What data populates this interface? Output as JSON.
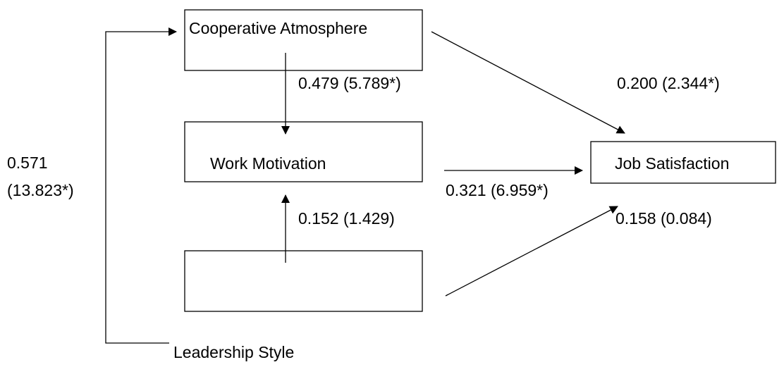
{
  "nodes": [
    "Cooperative Atmosphere",
    "Work Motivation",
    "Job Satisfaction",
    "Leadership Style"
  ],
  "paths": {
    "cooperative_to_motivation": "0.479 (5.789*)",
    "cooperative_to_satisfaction": "0.200 (2.344*)",
    "leadership_to_cooperative": [
      "0.571",
      "(13.823*)"
    ],
    "motivation_to_satisfaction": "0.321 (6.959*)",
    "leadership_to_motivation": "0.152 (1.429)",
    "leadership_to_satisfaction": "0.158 (0.084)"
  }
}
